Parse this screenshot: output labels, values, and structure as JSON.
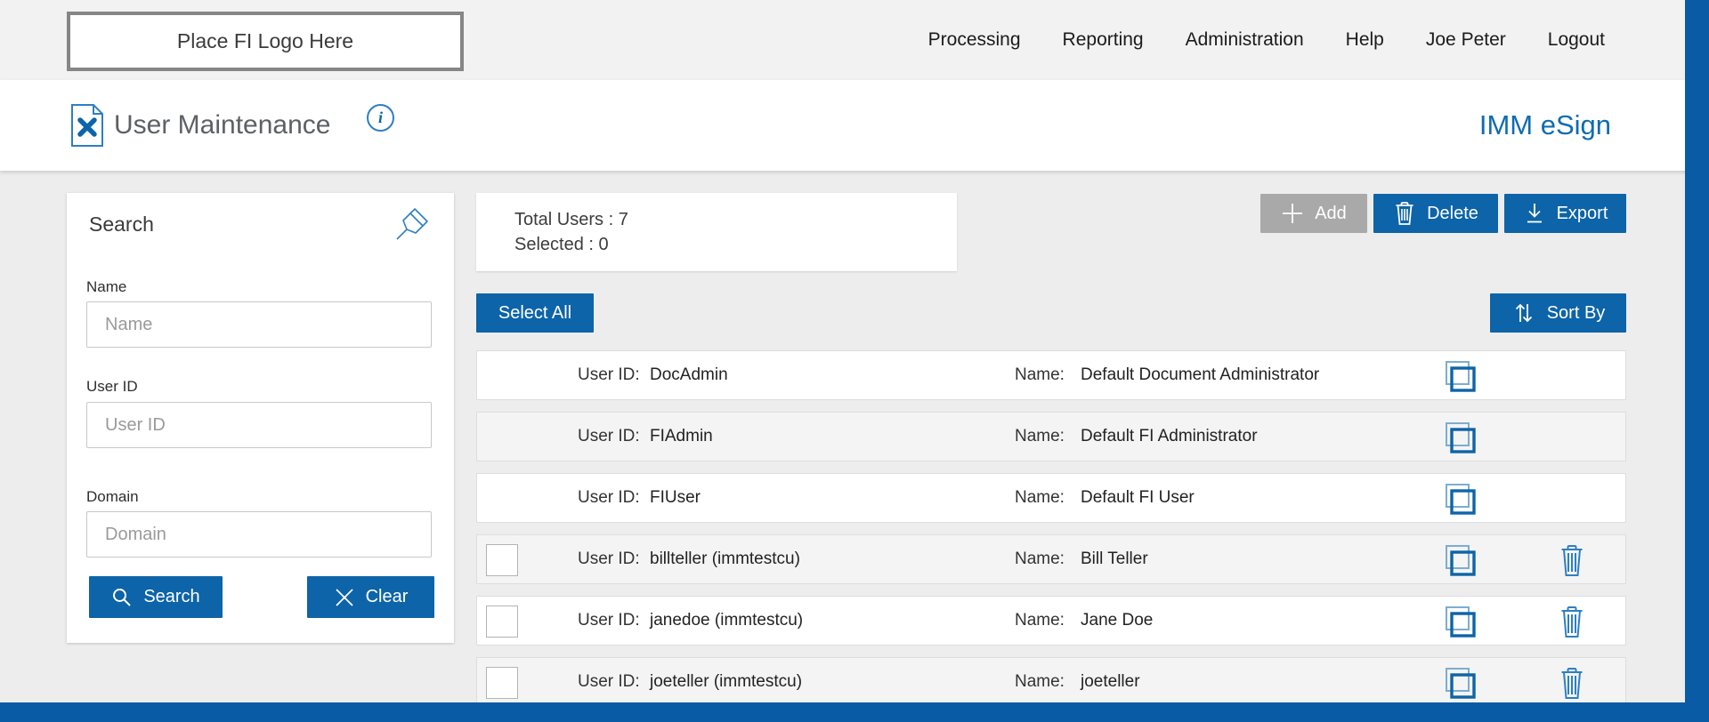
{
  "topbar": {
    "logo_text": "Place FI Logo Here",
    "nav": [
      {
        "label": "Processing"
      },
      {
        "label": "Reporting"
      },
      {
        "label": "Administration"
      },
      {
        "label": "Help"
      },
      {
        "label": "Joe Peter"
      },
      {
        "label": "Logout"
      }
    ]
  },
  "header": {
    "title": "User Maintenance",
    "brand": "IMM eSign",
    "icons": [
      "user-maintenance-page-icon",
      "info-icon"
    ]
  },
  "search_panel": {
    "title": "Search",
    "pin_icon": "pin-icon",
    "fields": [
      {
        "label": "Name",
        "placeholder": "Name",
        "value": ""
      },
      {
        "label": "User ID",
        "placeholder": "User ID",
        "value": ""
      },
      {
        "label": "Domain",
        "placeholder": "Domain",
        "value": ""
      }
    ],
    "search_button": "Search",
    "clear_button": "Clear"
  },
  "summary": {
    "total_label": "Total Users :",
    "total_value": "7",
    "selected_label": "Selected :",
    "selected_value": "0"
  },
  "toolbar": {
    "add_label": "Add",
    "delete_label": "Delete",
    "export_label": "Export",
    "select_all_label": "Select All",
    "sort_by_label": "Sort By"
  },
  "users": {
    "field_labels": {
      "user_id": "User ID:",
      "name": "Name:"
    },
    "rows": [
      {
        "user_id": "DocAdmin",
        "name": "Default Document Administrator",
        "selectable": false,
        "deletable": false
      },
      {
        "user_id": "FIAdmin",
        "name": "Default FI Administrator",
        "selectable": false,
        "deletable": false
      },
      {
        "user_id": "FIUser",
        "name": "Default FI User",
        "selectable": false,
        "deletable": false
      },
      {
        "user_id": "billteller (immtestcu)",
        "name": "Bill Teller",
        "selectable": true,
        "deletable": true
      },
      {
        "user_id": "janedoe (immtestcu)",
        "name": "Jane Doe",
        "selectable": true,
        "deletable": true
      },
      {
        "user_id": "joeteller (immtestcu)",
        "name": "joeteller",
        "selectable": true,
        "deletable": true
      }
    ]
  },
  "colors": {
    "accent_blue": "#0d64a8",
    "icon_blue": "#2e7fc0",
    "copy_icon_light_blue": "#7cadd2",
    "footer_blue": "#0a5ba6",
    "disabled_button_gray": "#a9a9a9",
    "topbar_gray": "#f2f2f2",
    "alt_row_gray": "#f4f4f4"
  }
}
